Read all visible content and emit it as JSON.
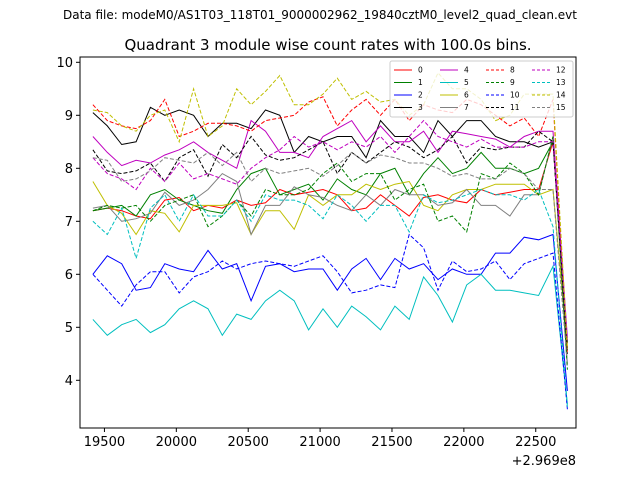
{
  "figure": {
    "suptitle": "Data file: modeM0/AS1T03_118T01_9000002962_19840cztM0_level2_quad_clean.evt",
    "title": "Quadrant 3 module wise count rates with 100.0s bins.",
    "x_offset_label": "+2.969e8"
  },
  "chart_data": {
    "type": "line",
    "title": "Quadrant 3 module wise count rates with 100.0s bins.",
    "xlabel": "",
    "ylabel": "",
    "x_offset": 296900000,
    "xlim": [
      19330,
      22780
    ],
    "ylim": [
      3.1,
      10.1
    ],
    "xticks": [
      19500,
      20000,
      20500,
      21000,
      21500,
      22000,
      22500
    ],
    "yticks": [
      4,
      5,
      6,
      7,
      8,
      9,
      10
    ],
    "grid": false,
    "legend_position": "top-right",
    "x": [
      19420,
      19520,
      19620,
      19720,
      19820,
      19920,
      20020,
      20120,
      20220,
      20320,
      20420,
      20520,
      20620,
      20720,
      20820,
      20920,
      21020,
      21120,
      21220,
      21320,
      21420,
      21520,
      21620,
      21720,
      21820,
      21920,
      22020,
      22120,
      22220,
      22320,
      22420,
      22520,
      22620,
      22720
    ],
    "series": [
      {
        "name": "0",
        "color": "#ff0000",
        "dash": "solid",
        "values": [
          7.2,
          7.25,
          7.2,
          7.1,
          7.05,
          7.4,
          7.45,
          7.2,
          7.3,
          7.25,
          7.4,
          7.3,
          7.35,
          7.6,
          7.5,
          7.55,
          7.6,
          7.5,
          7.2,
          7.25,
          7.5,
          7.3,
          7.1,
          7.45,
          7.5,
          7.4,
          7.35,
          7.6,
          7.5,
          7.55,
          7.6,
          7.6,
          8.5,
          4.6
        ]
      },
      {
        "name": "1",
        "color": "#008000",
        "dash": "solid",
        "values": [
          7.2,
          7.25,
          7.3,
          7.1,
          7.5,
          7.6,
          7.4,
          7.3,
          7.2,
          7.15,
          7.6,
          7.9,
          8.0,
          7.5,
          7.6,
          7.7,
          7.4,
          7.8,
          7.6,
          7.5,
          7.9,
          8.0,
          7.5,
          7.9,
          8.2,
          7.9,
          8.0,
          8.3,
          8.0,
          8.0,
          7.9,
          8.0,
          8.5,
          4.7
        ]
      },
      {
        "name": "2",
        "color": "#0000ff",
        "dash": "solid",
        "values": [
          6.0,
          6.35,
          6.2,
          5.7,
          5.75,
          6.2,
          6.1,
          6.05,
          6.45,
          6.1,
          6.2,
          5.5,
          6.15,
          6.2,
          6.05,
          6.1,
          6.1,
          5.7,
          6.1,
          6.3,
          5.9,
          6.3,
          6.1,
          6.2,
          5.9,
          6.1,
          6.0,
          6.0,
          6.4,
          6.4,
          6.7,
          6.65,
          6.75,
          3.8
        ]
      },
      {
        "name": "3",
        "color": "#000000",
        "dash": "solid",
        "values": [
          9.05,
          8.8,
          8.45,
          8.5,
          9.15,
          9.0,
          9.1,
          9.0,
          8.6,
          8.85,
          8.85,
          8.75,
          9.1,
          9.0,
          8.3,
          8.6,
          8.5,
          8.6,
          8.6,
          8.2,
          8.9,
          8.6,
          8.6,
          8.3,
          8.9,
          8.6,
          8.9,
          8.9,
          8.6,
          8.5,
          8.5,
          8.4,
          8.5,
          4.7
        ]
      },
      {
        "name": "4",
        "color": "#bf00bf",
        "dash": "solid",
        "values": [
          8.6,
          8.3,
          8.05,
          8.15,
          8.1,
          8.25,
          8.35,
          8.5,
          8.3,
          8.15,
          8.0,
          8.9,
          8.7,
          8.3,
          8.3,
          8.2,
          8.6,
          8.75,
          8.9,
          8.5,
          8.8,
          8.5,
          8.5,
          8.7,
          8.3,
          8.7,
          8.65,
          8.6,
          8.55,
          8.4,
          8.6,
          8.7,
          8.7,
          4.8
        ]
      },
      {
        "name": "5",
        "color": "#00bfbf",
        "dash": "solid",
        "values": [
          5.15,
          4.85,
          5.05,
          5.15,
          4.9,
          5.05,
          5.35,
          5.5,
          5.35,
          4.85,
          5.25,
          5.15,
          5.5,
          5.7,
          5.5,
          4.95,
          5.35,
          5.0,
          5.4,
          5.2,
          4.95,
          5.4,
          5.15,
          5.95,
          5.6,
          5.1,
          5.8,
          6.0,
          5.7,
          5.7,
          5.65,
          5.6,
          6.15,
          3.55
        ]
      },
      {
        "name": "6",
        "color": "#bfbf00",
        "dash": "solid",
        "values": [
          7.75,
          7.3,
          7.15,
          6.75,
          7.2,
          7.15,
          6.8,
          7.3,
          7.3,
          7.3,
          7.35,
          6.75,
          7.2,
          7.2,
          6.85,
          7.5,
          7.3,
          7.5,
          7.5,
          7.7,
          7.6,
          7.7,
          7.75,
          7.3,
          7.2,
          7.5,
          7.6,
          7.6,
          7.7,
          7.7,
          7.7,
          7.5,
          7.6,
          4.6
        ]
      },
      {
        "name": "7",
        "color": "#808080",
        "dash": "solid",
        "values": [
          7.25,
          7.3,
          7.0,
          7.05,
          7.15,
          7.55,
          7.3,
          7.4,
          7.6,
          7.9,
          7.75,
          6.75,
          7.3,
          7.3,
          7.65,
          7.5,
          7.45,
          7.3,
          7.2,
          7.5,
          7.3,
          7.6,
          7.5,
          7.5,
          7.3,
          7.35,
          7.6,
          7.3,
          7.3,
          7.1,
          7.5,
          7.5,
          8.6,
          4.3
        ]
      },
      {
        "name": "8",
        "color": "#ff0000",
        "dash": "dashed",
        "values": [
          9.2,
          8.9,
          8.8,
          8.75,
          8.9,
          9.3,
          8.6,
          8.7,
          8.85,
          8.85,
          8.8,
          8.7,
          8.9,
          8.95,
          9.0,
          9.25,
          9.35,
          8.8,
          9.1,
          9.3,
          9.0,
          9.3,
          8.9,
          9.2,
          9.1,
          9.05,
          9.3,
          9.2,
          9.0,
          8.8,
          8.95,
          8.6,
          9.3,
          4.5
        ]
      },
      {
        "name": "9",
        "color": "#008000",
        "dash": "dashed",
        "values": [
          7.2,
          7.3,
          7.25,
          7.3,
          7.0,
          7.3,
          7.4,
          7.5,
          6.9,
          7.1,
          7.4,
          7.1,
          7.6,
          7.5,
          7.5,
          7.6,
          7.9,
          8.1,
          7.75,
          7.9,
          7.9,
          7.4,
          7.6,
          7.7,
          7.0,
          7.1,
          6.8,
          7.9,
          7.8,
          8.1,
          7.9,
          7.5,
          8.6,
          4.2
        ]
      },
      {
        "name": "10",
        "color": "#0000ff",
        "dash": "dashed",
        "values": [
          6.0,
          5.7,
          5.4,
          5.8,
          6.05,
          6.05,
          5.65,
          5.95,
          6.05,
          6.25,
          6.1,
          6.2,
          6.25,
          6.2,
          6.15,
          6.25,
          6.35,
          6.05,
          5.65,
          5.7,
          5.8,
          5.75,
          6.75,
          6.5,
          5.7,
          6.25,
          6.05,
          6.1,
          6.25,
          5.9,
          6.2,
          6.3,
          6.4,
          3.45
        ]
      },
      {
        "name": "11",
        "color": "#000000",
        "dash": "dashed",
        "values": [
          8.35,
          7.95,
          7.9,
          7.95,
          8.1,
          7.75,
          8.2,
          8.35,
          7.85,
          8.45,
          8.2,
          8.6,
          8.25,
          8.15,
          8.2,
          8.35,
          8.5,
          7.9,
          8.3,
          8.1,
          8.3,
          8.5,
          8.4,
          8.2,
          8.35,
          8.6,
          8.1,
          8.4,
          8.35,
          8.4,
          8.4,
          8.7,
          8.5,
          4.5
        ]
      },
      {
        "name": "12",
        "color": "#bf00bf",
        "dash": "dashed",
        "values": [
          8.2,
          7.9,
          7.8,
          7.6,
          8.0,
          7.75,
          8.1,
          7.8,
          7.9,
          7.8,
          7.7,
          8.0,
          8.2,
          8.35,
          8.6,
          8.4,
          8.5,
          8.35,
          8.5,
          8.4,
          8.6,
          8.3,
          8.6,
          8.9,
          8.6,
          8.5,
          8.4,
          8.55,
          8.4,
          8.4,
          8.4,
          8.5,
          8.5,
          4.7
        ]
      },
      {
        "name": "13",
        "color": "#00bfbf",
        "dash": "dashed",
        "values": [
          7.0,
          6.75,
          7.25,
          6.3,
          7.25,
          7.5,
          7.0,
          7.5,
          7.1,
          7.1,
          7.4,
          7.0,
          7.5,
          7.4,
          7.4,
          7.3,
          7.05,
          7.5,
          7.3,
          7.0,
          7.3,
          7.3,
          6.8,
          7.5,
          7.35,
          7.4,
          7.5,
          7.6,
          7.5,
          7.5,
          7.4,
          7.6,
          6.9,
          3.5
        ]
      },
      {
        "name": "14",
        "color": "#bfbf00",
        "dash": "dashed",
        "values": [
          9.1,
          9.05,
          8.8,
          8.7,
          9.0,
          9.1,
          8.5,
          9.5,
          8.6,
          8.8,
          9.5,
          9.2,
          9.45,
          9.75,
          9.2,
          9.2,
          9.4,
          9.7,
          9.3,
          9.45,
          9.25,
          9.3,
          9.0,
          9.2,
          9.8,
          9.5,
          9.5,
          9.3,
          8.9,
          9.0,
          9.4,
          9.4,
          9.4,
          4.6
        ]
      },
      {
        "name": "15",
        "color": "#808080",
        "dash": "dashed",
        "values": [
          8.2,
          8.15,
          7.75,
          7.8,
          7.95,
          8.2,
          8.15,
          8.1,
          8.3,
          8.05,
          8.3,
          7.75,
          8.0,
          7.9,
          7.95,
          8.0,
          7.85,
          8.05,
          8.3,
          8.1,
          8.25,
          8.2,
          8.1,
          8.1,
          8.0,
          7.85,
          7.9,
          7.8,
          7.8,
          8.0,
          7.9,
          7.6,
          7.6,
          4.3
        ]
      }
    ]
  }
}
